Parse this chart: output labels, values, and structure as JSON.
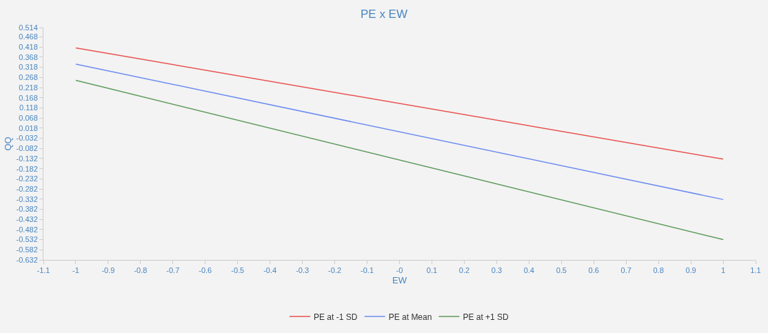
{
  "chart_data": {
    "type": "line",
    "title": "PE x EW",
    "xlabel": "EW",
    "ylabel": "QQ",
    "x": [
      -1,
      1
    ],
    "series": [
      {
        "name": "PE at -1 SD",
        "color": "#e8514f",
        "values": [
          0.414,
          -0.135
        ]
      },
      {
        "name": "PE at Mean",
        "color": "#6c8cf0",
        "values": [
          0.334,
          -0.334
        ]
      },
      {
        "name": "PE at +1 SD",
        "color": "#5e9a5c",
        "values": [
          0.254,
          -0.532
        ]
      }
    ],
    "xlim": [
      -1.1,
      1.1
    ],
    "xticks": [
      -1.1,
      -1,
      -0.9,
      -0.8,
      -0.7,
      -0.6,
      -0.5,
      -0.4,
      -0.3,
      -0.2,
      -0.1,
      {
        "value": 0,
        "label": "-0"
      },
      0.1,
      0.2,
      0.3,
      0.4,
      0.5,
      0.6,
      0.7,
      0.8,
      0.9,
      1,
      1.1
    ],
    "ylim": [
      -0.632,
      0.514
    ],
    "yticks": [
      -0.632,
      -0.582,
      -0.532,
      -0.482,
      -0.432,
      -0.382,
      -0.332,
      -0.282,
      -0.232,
      -0.182,
      -0.132,
      -0.082,
      -0.032,
      0.018,
      0.068,
      0.118,
      0.168,
      0.218,
      0.268,
      0.318,
      0.368,
      0.418,
      0.468,
      0.514
    ],
    "grid": false,
    "legend": "bottom",
    "marker": "none",
    "line_style": "solid"
  }
}
